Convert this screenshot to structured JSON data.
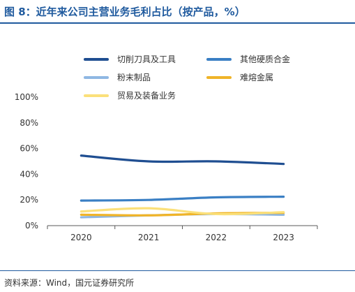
{
  "header": {
    "title": "图 8：近年来公司主营业务毛利占比（按产品，%）"
  },
  "footer": {
    "source": "资料来源：Wind，国元证券研究所"
  },
  "chart_data": {
    "type": "line",
    "title": "图 8：近年来公司主营业务毛利占比（按产品，%）",
    "xlabel": "",
    "ylabel": "",
    "categories": [
      "2020",
      "2021",
      "2022",
      "2023"
    ],
    "ylim": [
      0,
      100
    ],
    "yticks": [
      "0%",
      "20%",
      "40%",
      "60%",
      "80%",
      "100%"
    ],
    "grid": false,
    "legend_position": "top",
    "series": [
      {
        "name": "切削刀具及工具",
        "color": "#1f4e91",
        "values": [
          54.5,
          50.0,
          50.0,
          48.0
        ]
      },
      {
        "name": "其他硬质合金",
        "color": "#3a7fc4",
        "values": [
          19.5,
          20.0,
          22.0,
          22.5
        ]
      },
      {
        "name": "粉末制品",
        "color": "#8fb7e3",
        "values": [
          6.5,
          8.0,
          9.0,
          8.5
        ]
      },
      {
        "name": "难熔金属",
        "color": "#f0b428",
        "values": [
          8.5,
          8.0,
          9.5,
          10.0
        ]
      },
      {
        "name": "贸易及装备业务",
        "color": "#fbe07a",
        "values": [
          11.0,
          13.5,
          9.0,
          10.5
        ]
      }
    ]
  }
}
